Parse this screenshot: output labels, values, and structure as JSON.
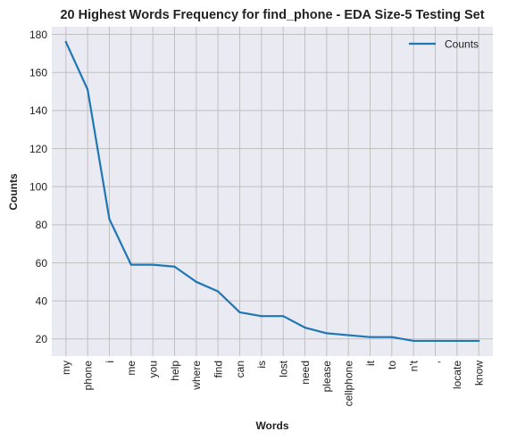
{
  "chart_data": {
    "type": "line",
    "title": "20 Highest Words Frequency for find_phone - EDA Size-5 Testing Set",
    "xlabel": "Words",
    "ylabel": "Counts",
    "categories": [
      "my",
      "phone",
      "i",
      "me",
      "you",
      "help",
      "where",
      "find",
      "can",
      "is",
      "lost",
      "need",
      "please",
      "cellphone",
      "it",
      "to",
      "n't",
      ",",
      "locate",
      "know"
    ],
    "series": [
      {
        "name": "Counts",
        "values": [
          176,
          151,
          83,
          59,
          59,
          58,
          50,
          45,
          34,
          32,
          32,
          26,
          23,
          22,
          21,
          21,
          19,
          19,
          19,
          19
        ]
      }
    ],
    "ylim": [
      11,
      184
    ],
    "yticks": [
      20,
      40,
      60,
      80,
      100,
      120,
      140,
      160,
      180
    ],
    "grid": true,
    "legend_position": "top-right",
    "colors": {
      "line": "#1f77b4",
      "plot_bg": "#eaeaf2",
      "grid": "#c0c0c0"
    }
  }
}
